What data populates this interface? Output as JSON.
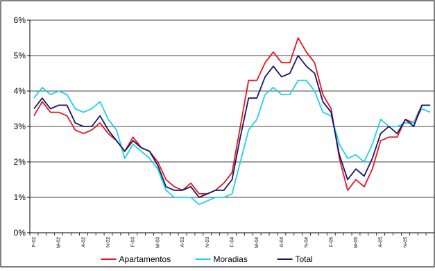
{
  "chart_data": {
    "type": "line",
    "y_axis": {
      "min": 0,
      "max": 6,
      "step": 1,
      "unit": "%",
      "tick_labels": [
        "0%",
        "1%",
        "2%",
        "3%",
        "4%",
        "5%",
        "6%"
      ]
    },
    "grid": {
      "horizontal": true,
      "vertical": false
    },
    "legend_position": "bottom-center",
    "x_labels": [
      {
        "index": 0,
        "label": "F-02"
      },
      {
        "index": 3,
        "label": "M-02"
      },
      {
        "index": 6,
        "label": "A-02"
      },
      {
        "index": 9,
        "label": "N-02"
      },
      {
        "index": 12,
        "label": "F-03"
      },
      {
        "index": 15,
        "label": "M-03"
      },
      {
        "index": 18,
        "label": "A-03"
      },
      {
        "index": 21,
        "label": "N-03"
      },
      {
        "index": 24,
        "label": "F-04"
      },
      {
        "index": 27,
        "label": "M-04"
      },
      {
        "index": 30,
        "label": "A-04"
      },
      {
        "index": 33,
        "label": "N-04"
      },
      {
        "index": 36,
        "label": "F-05"
      },
      {
        "index": 39,
        "label": "M-05"
      },
      {
        "index": 42,
        "label": "A-05"
      },
      {
        "index": 45,
        "label": "N-05"
      }
    ],
    "series": [
      {
        "name": "Apartamentos",
        "color": "#e8141a",
        "values": [
          3.3,
          3.7,
          3.4,
          3.4,
          3.3,
          2.9,
          2.8,
          2.9,
          3.1,
          2.8,
          2.6,
          2.3,
          2.7,
          2.4,
          2.3,
          2.0,
          1.5,
          1.3,
          1.2,
          1.4,
          1.1,
          1.1,
          1.2,
          1.4,
          1.7,
          3.0,
          4.3,
          4.3,
          4.8,
          5.1,
          4.8,
          4.8,
          5.5,
          5.1,
          4.8,
          3.9,
          3.5,
          2.1,
          1.2,
          1.5,
          1.3,
          1.8,
          2.6,
          2.7,
          2.7,
          3.2,
          3.1,
          3.6,
          3.6
        ]
      },
      {
        "name": "Moradias",
        "color": "#19d3e6",
        "values": [
          3.8,
          4.1,
          3.9,
          4.0,
          3.9,
          3.5,
          3.4,
          3.5,
          3.7,
          3.2,
          2.9,
          2.1,
          2.5,
          2.3,
          2.1,
          1.8,
          1.2,
          1.0,
          1.0,
          1.0,
          0.8,
          0.9,
          1.0,
          1.0,
          1.1,
          2.0,
          2.9,
          3.2,
          3.9,
          4.1,
          3.9,
          3.9,
          4.3,
          4.3,
          4.0,
          3.4,
          3.3,
          2.5,
          2.1,
          2.2,
          2.0,
          2.5,
          3.2,
          3.0,
          3.0,
          3.1,
          3.1,
          3.5,
          3.4
        ]
      },
      {
        "name": "Total",
        "color": "#14146e",
        "values": [
          3.5,
          3.8,
          3.5,
          3.6,
          3.6,
          3.1,
          3.0,
          3.0,
          3.3,
          2.9,
          2.6,
          2.3,
          2.6,
          2.4,
          2.3,
          1.9,
          1.3,
          1.2,
          1.2,
          1.3,
          1.0,
          1.1,
          1.2,
          1.2,
          1.5,
          2.7,
          3.8,
          3.8,
          4.4,
          4.7,
          4.4,
          4.5,
          5.0,
          4.7,
          4.5,
          3.7,
          3.4,
          2.2,
          1.5,
          1.8,
          1.6,
          2.1,
          2.8,
          3.0,
          2.8,
          3.2,
          3.0,
          3.6,
          3.6
        ]
      }
    ]
  }
}
